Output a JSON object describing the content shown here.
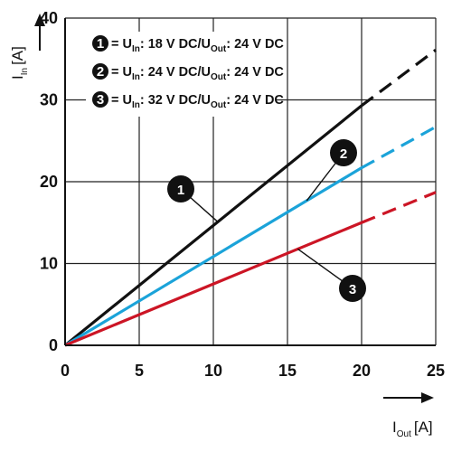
{
  "chart_data": {
    "type": "line",
    "xlabel": "I",
    "xlabel_sub": "Out",
    "xlabel_unit": "[A]",
    "ylabel": "I",
    "ylabel_sub": "In",
    "ylabel_unit": "[A]",
    "xlim": [
      0,
      25
    ],
    "ylim": [
      0,
      40
    ],
    "xticks": [
      "0",
      "5",
      "10",
      "15",
      "20",
      "25"
    ],
    "yticks": [
      "0",
      "10",
      "20",
      "30",
      "40"
    ],
    "grid": true,
    "legend_position": "top-left",
    "series": [
      {
        "marker": "1",
        "legend_parts": [
          "= U",
          "In",
          ": 18 V DC/U",
          "Out",
          ": 24 V DC"
        ],
        "color": "#111111",
        "points": [
          [
            0,
            0
          ],
          [
            20,
            29.3
          ]
        ],
        "dashed_points": [
          [
            20,
            29.3
          ],
          [
            25,
            36.1
          ]
        ]
      },
      {
        "marker": "2",
        "legend_parts": [
          "= U",
          "In",
          ": 24 V DC/U",
          "Out",
          ": 24 V DC"
        ],
        "color": "#1ba3d9",
        "points": [
          [
            0,
            0
          ],
          [
            20,
            21.7
          ]
        ],
        "dashed_points": [
          [
            20,
            21.7
          ],
          [
            25,
            26.7
          ]
        ]
      },
      {
        "marker": "3",
        "legend_parts": [
          "= U",
          "In",
          ": 32 V DC/U",
          "Out",
          ": 24 V DC"
        ],
        "color": "#cc1525",
        "points": [
          [
            0,
            0
          ],
          [
            20,
            15.0
          ]
        ],
        "dashed_points": [
          [
            20,
            15.0
          ],
          [
            25,
            18.7
          ]
        ]
      }
    ],
    "annotations": [
      {
        "label": "1",
        "series": 0,
        "at_x": 10.3
      },
      {
        "label": "2",
        "series": 1,
        "at_x": 16.3
      },
      {
        "label": "3",
        "series": 2,
        "at_x": 15.7
      }
    ]
  }
}
